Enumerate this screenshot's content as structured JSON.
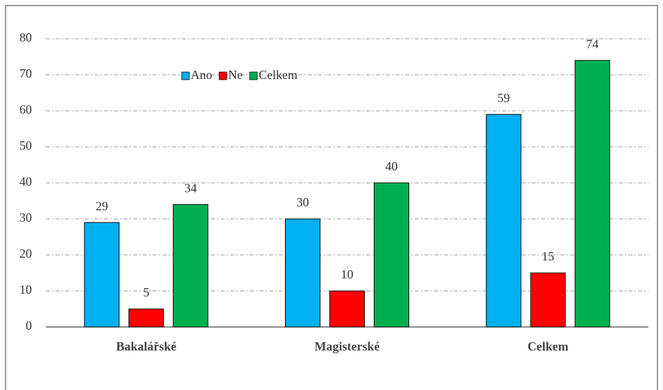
{
  "chart_data": {
    "type": "bar",
    "categories": [
      "Bakalářské",
      "Magisterské",
      "Celkem"
    ],
    "series": [
      {
        "name": "Ano",
        "color": "#00b0f0",
        "values": [
          29,
          30,
          59
        ]
      },
      {
        "name": "Ne",
        "color": "#ff0000",
        "values": [
          5,
          10,
          15
        ]
      },
      {
        "name": "Celkem",
        "color": "#00b050",
        "values": [
          34,
          40,
          74
        ]
      }
    ],
    "ylim": [
      0,
      80
    ],
    "yticks": [
      0,
      10,
      20,
      30,
      40,
      50,
      60,
      70,
      80
    ],
    "grid": true,
    "legend": "upper left"
  }
}
